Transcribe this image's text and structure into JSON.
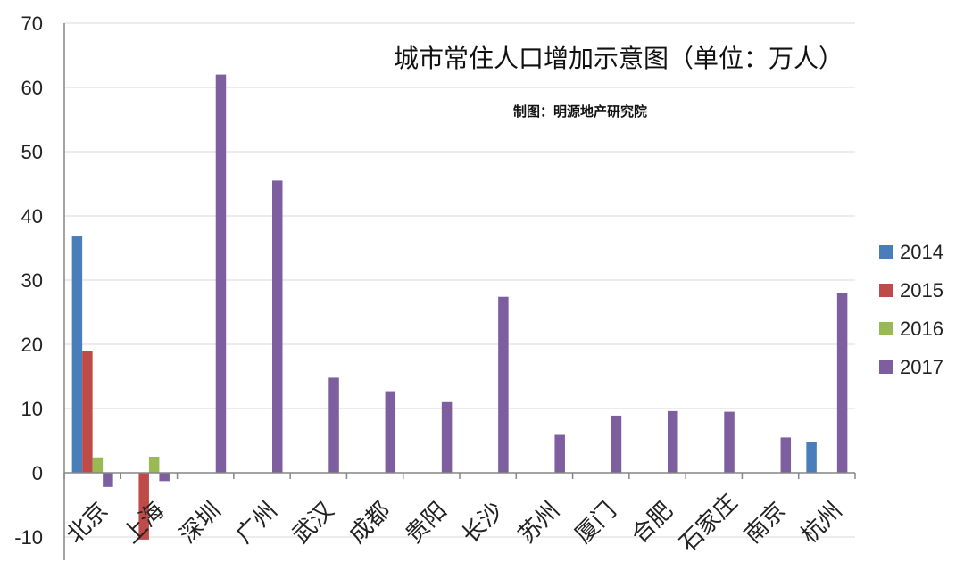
{
  "chart_data": {
    "type": "bar",
    "title": "城市常住人口增加示意图（单位：万人）",
    "subtitle": "制图：明源地产研究院",
    "categories": [
      "北京",
      "上海",
      "深圳",
      "广州",
      "武汉",
      "成都",
      "贵阳",
      "长沙",
      "苏州",
      "厦门",
      "合肥",
      "石家庄",
      "南京",
      "杭州"
    ],
    "series": [
      {
        "name": "2014",
        "color": "#4a7ebb",
        "values": [
          36.8,
          null,
          null,
          null,
          null,
          null,
          null,
          null,
          null,
          null,
          null,
          null,
          null,
          4.8
        ]
      },
      {
        "name": "2015",
        "color": "#be4b48",
        "values": [
          18.9,
          -10.4,
          null,
          null,
          null,
          null,
          null,
          null,
          null,
          null,
          null,
          null,
          null,
          null
        ]
      },
      {
        "name": "2016",
        "color": "#98b954",
        "values": [
          2.4,
          2.5,
          null,
          null,
          null,
          null,
          null,
          null,
          null,
          null,
          null,
          null,
          null,
          null
        ]
      },
      {
        "name": "2017",
        "color": "#7d5fa0",
        "values": [
          -2.2,
          -1.3,
          62.0,
          45.5,
          14.8,
          12.7,
          11.0,
          27.4,
          5.9,
          8.9,
          9.6,
          9.5,
          5.5,
          28.0
        ]
      }
    ],
    "ylim": [
      -10,
      70
    ],
    "yticks": [
      -10,
      0,
      10,
      20,
      30,
      40,
      50,
      60,
      70
    ],
    "grid": true,
    "legend_position": "right"
  }
}
